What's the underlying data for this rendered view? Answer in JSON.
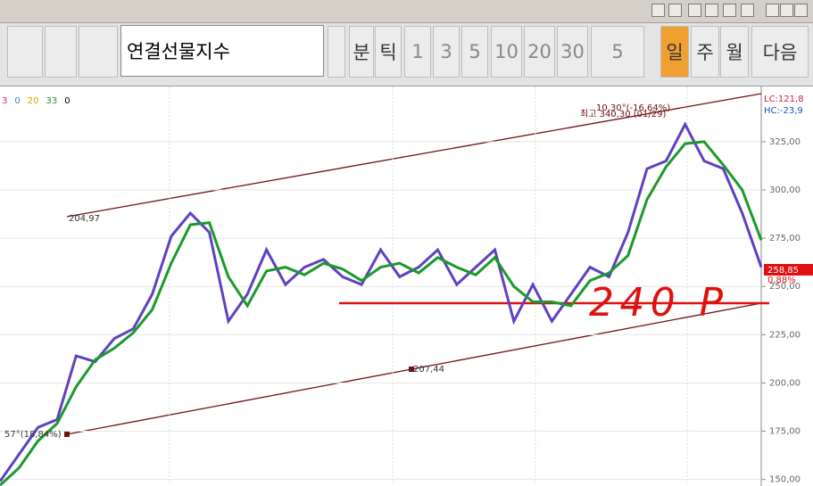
{
  "toolbar": {
    "symbol": "연결선물지수",
    "buttons": [
      "분",
      "틱",
      "1",
      "3",
      "5",
      "10",
      "20",
      "30",
      "5",
      "일",
      "주",
      "월",
      "다음"
    ]
  },
  "chart_data": {
    "type": "line",
    "legend": [
      {
        "name": "3",
        "color": "#e0208a"
      },
      {
        "name": "0",
        "color": "#2a8ad8"
      },
      {
        "name": "20",
        "color": "#e0a000"
      },
      {
        "name": "33",
        "color": "#1a9a2a"
      },
      {
        "name": "0",
        "color": "#000000"
      }
    ],
    "series": [
      {
        "color": "#6040c0",
        "values": [
          149,
          163,
          177,
          181,
          214,
          211,
          223,
          228,
          246,
          276,
          288,
          278,
          232,
          246,
          269,
          251,
          260,
          264,
          255,
          251,
          269,
          255,
          260,
          269,
          251,
          260,
          269,
          232,
          251,
          232,
          246,
          260,
          255,
          278,
          311,
          315,
          334,
          315,
          311,
          288,
          260
        ]
      },
      {
        "color": "#1a9a2a",
        "values": [
          147,
          156,
          170,
          179,
          198,
          212,
          218,
          226,
          238,
          262,
          282,
          283,
          255,
          240,
          258,
          260,
          256,
          262,
          259,
          253,
          260,
          262,
          257,
          265,
          260,
          256,
          265,
          250,
          242,
          242,
          240,
          253,
          257,
          266,
          295,
          312,
          324,
          325,
          313,
          300,
          274
        ]
      }
    ],
    "ylim": [
      146.6,
      353.6
    ],
    "yticks": [
      {
        "value": 150,
        "label": "150,00"
      },
      {
        "value": 175,
        "label": "175,00"
      },
      {
        "value": 200,
        "label": "200,00"
      },
      {
        "value": 225,
        "label": "225,00"
      },
      {
        "value": 250,
        "label": "250,00"
      },
      {
        "value": 275,
        "label": "275,00"
      },
      {
        "value": 300,
        "label": "300,00"
      },
      {
        "value": 325,
        "label": "325,00"
      }
    ],
    "grid": true,
    "annotations": [
      "204,97",
      "207,44",
      "57°(18,84%)",
      "10,30°(-16,64%)",
      "최고 340,30 (01/29)",
      "LC:121,8",
      "HC:-23,9",
      "258,85",
      "0,88%",
      "240 P"
    ]
  }
}
